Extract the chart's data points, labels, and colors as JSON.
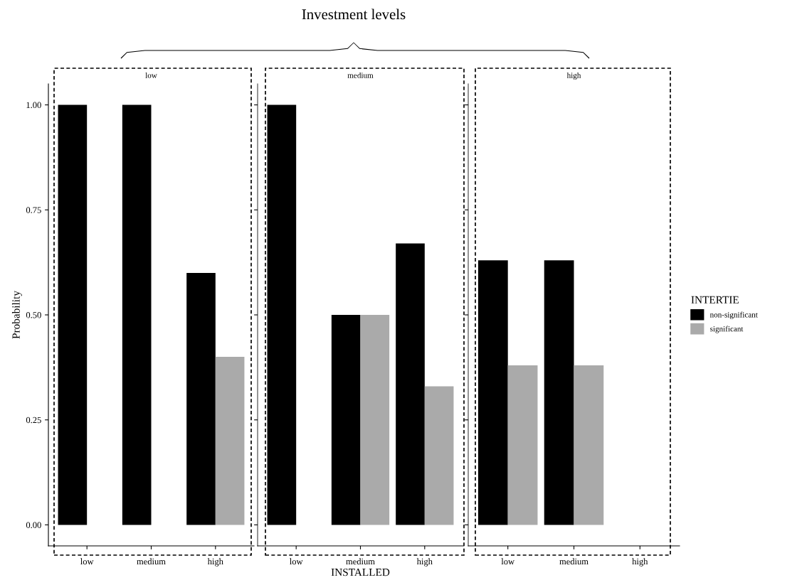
{
  "chart_data": [
    {
      "type": "bar",
      "title": "low",
      "ylabel": "Probability",
      "categories": [
        "low",
        "medium",
        "high"
      ],
      "ylim": [
        -0.05,
        1.05
      ],
      "yticks": [
        {
          "value": 0,
          "label": "0.00"
        },
        {
          "value": 0.25,
          "label": "0.25"
        },
        {
          "value": 0.5,
          "label": "0.50"
        },
        {
          "value": 0.75,
          "label": "0.75"
        },
        {
          "value": 1,
          "label": "1.00"
        }
      ],
      "grid": false,
      "legend": false,
      "series": [
        {
          "color": "#000000",
          "values": [
            1.0,
            1.0,
            0.6
          ]
        },
        {
          "color": "#aaaaaa",
          "values": [
            null,
            null,
            0.4
          ]
        }
      ]
    },
    {
      "type": "bar",
      "title": "medium",
      "xlabel": "INSTALLED",
      "annotations": [
        "Investment levels"
      ],
      "categories": [
        "low",
        "medium",
        "high"
      ],
      "ylim": [
        -0.05,
        1.05
      ],
      "yticks": [
        {
          "value": 0,
          "label": null
        },
        {
          "value": 0.25,
          "label": null
        },
        {
          "value": 0.5,
          "label": null
        },
        {
          "value": 0.75,
          "label": null
        },
        {
          "value": 1,
          "label": null
        }
      ],
      "tick_labels": "x",
      "grid": false,
      "legend": false,
      "series": [
        {
          "color": "#000000",
          "values": [
            1.0,
            0.5,
            0.67
          ]
        },
        {
          "color": "#aaaaaa",
          "values": [
            null,
            0.5,
            0.33
          ]
        }
      ]
    },
    {
      "type": "bar",
      "title": "high",
      "legend_title": "INTERTIE",
      "categories": [
        "low",
        "medium",
        "high"
      ],
      "ylim": [
        -0.05,
        1.05
      ],
      "yticks": [
        {
          "value": 0,
          "label": null
        },
        {
          "value": 0.25,
          "label": null
        },
        {
          "value": 0.5,
          "label": null
        },
        {
          "value": 0.75,
          "label": null
        },
        {
          "value": 1,
          "label": null
        }
      ],
      "tick_labels": "x",
      "grid": false,
      "legend": "right",
      "series": [
        {
          "name": "non-significant",
          "color": "#000000",
          "values": [
            0.63,
            0.63,
            null
          ]
        },
        {
          "name": "significant",
          "color": "#aaaaaa",
          "values": [
            0.38,
            0.38,
            null
          ]
        }
      ]
    }
  ]
}
